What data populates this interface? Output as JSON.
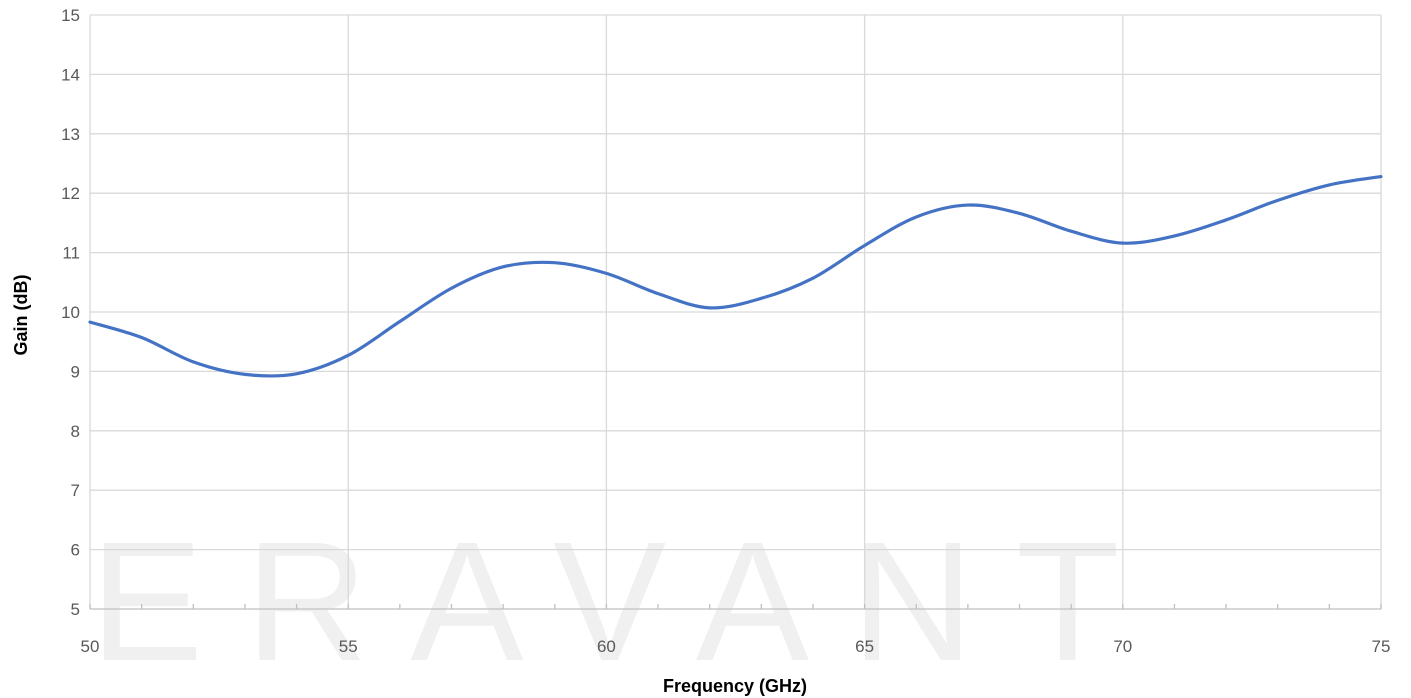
{
  "watermark": "ERAVANT",
  "chart_data": {
    "type": "line",
    "title": "",
    "xlabel": "Frequency (GHz)",
    "ylabel": "Gain (dB)",
    "xlim": [
      50,
      75
    ],
    "ylim": [
      5,
      15
    ],
    "x_ticks": [
      50,
      55,
      60,
      65,
      70,
      75
    ],
    "y_ticks": [
      5,
      6,
      7,
      8,
      9,
      10,
      11,
      12,
      13,
      14,
      15
    ],
    "x_minor_step": 1,
    "grid": true,
    "legend": "none",
    "series": [
      {
        "color": "#4472c4",
        "x": [
          50,
          51,
          52,
          53,
          54,
          55,
          56,
          57,
          58,
          59,
          60,
          61,
          62,
          63,
          64,
          65,
          66,
          67,
          68,
          69,
          70,
          71,
          72,
          73,
          74,
          75
        ],
        "y": [
          9.83,
          9.57,
          9.16,
          8.95,
          8.96,
          9.27,
          9.84,
          10.4,
          10.76,
          10.83,
          10.65,
          10.31,
          10.07,
          10.23,
          10.57,
          11.12,
          11.6,
          11.8,
          11.66,
          11.36,
          11.16,
          11.28,
          11.55,
          11.88,
          12.14,
          12.28
        ]
      }
    ]
  }
}
